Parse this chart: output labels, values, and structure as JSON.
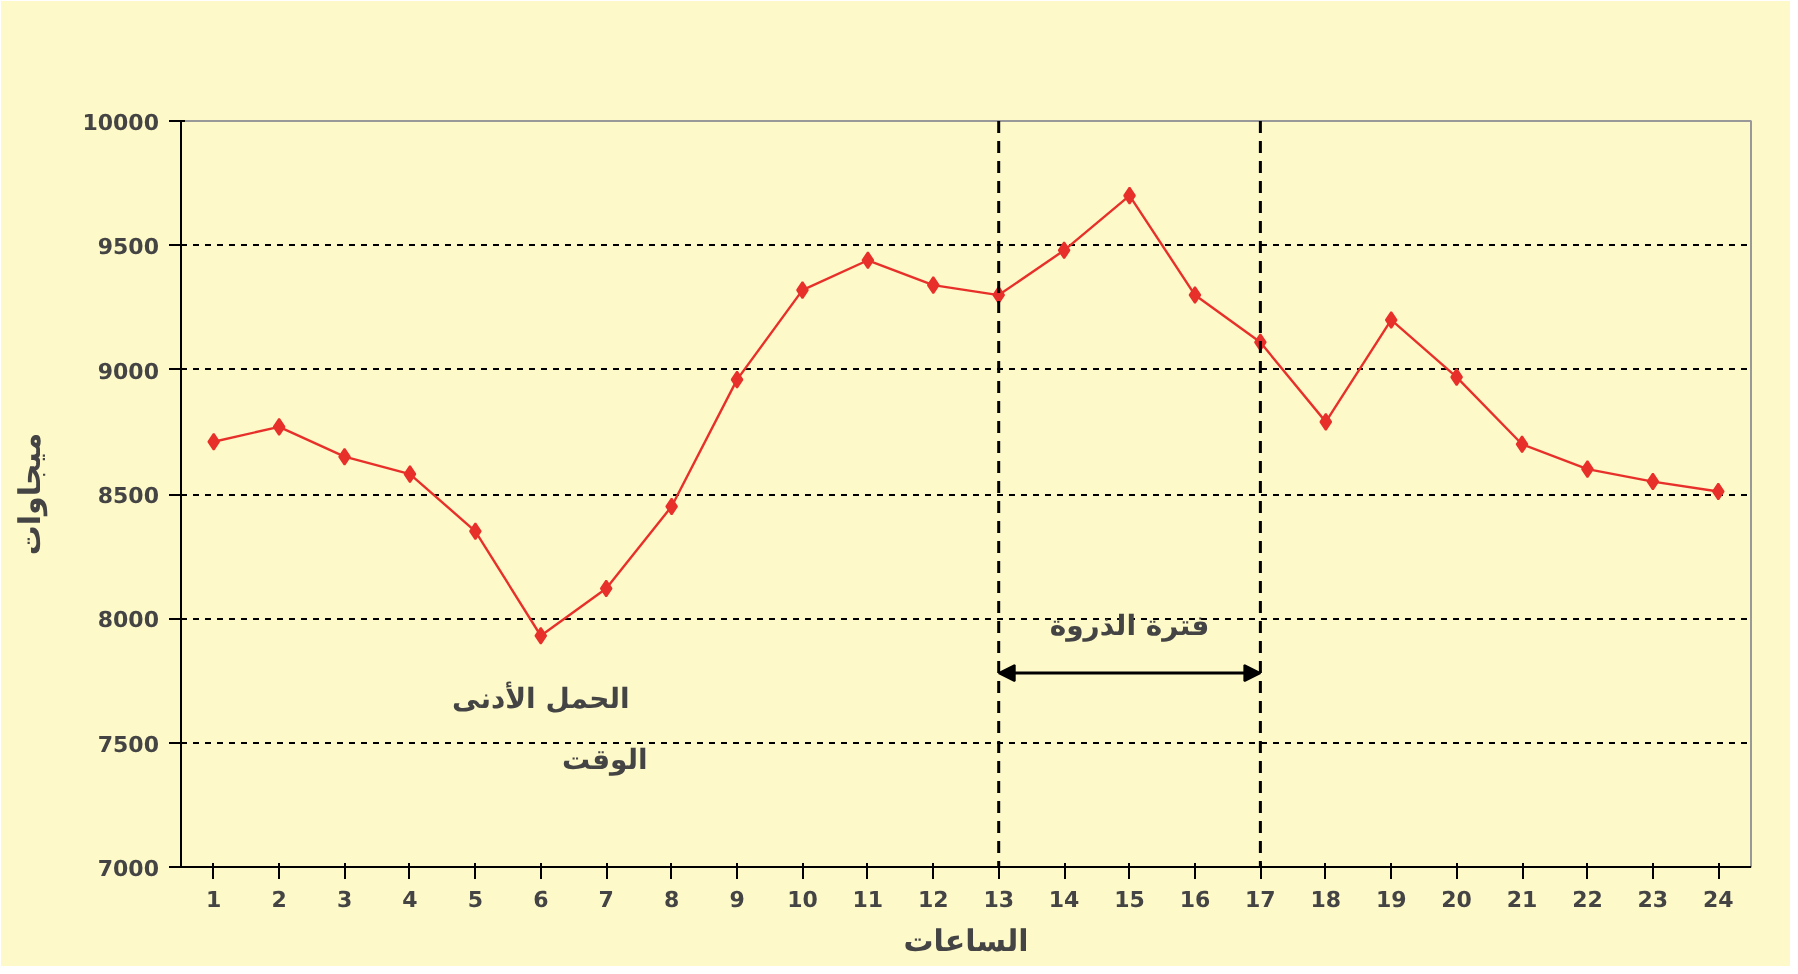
{
  "chart_data": {
    "type": "line",
    "xlabel": "الساعات",
    "ylabel": "ميجاوات",
    "x": [
      1,
      2,
      3,
      4,
      5,
      6,
      7,
      8,
      9,
      10,
      11,
      12,
      13,
      14,
      15,
      16,
      17,
      18,
      19,
      20,
      21,
      22,
      23,
      24
    ],
    "series": [
      {
        "color": "#e8302a",
        "values": [
          8710,
          8770,
          8650,
          8580,
          8350,
          7930,
          8120,
          8450,
          8960,
          9320,
          9440,
          9340,
          9300,
          9480,
          9700,
          9300,
          9110,
          8790,
          9200,
          8970,
          8700,
          8600,
          8550,
          8510
        ]
      }
    ],
    "xlim": [
      0.5,
      24.5
    ],
    "xticks": [
      1,
      2,
      3,
      4,
      5,
      6,
      7,
      8,
      9,
      10,
      11,
      12,
      13,
      14,
      15,
      16,
      17,
      18,
      19,
      20,
      21,
      22,
      23,
      24
    ],
    "ylim": [
      7000,
      10000
    ],
    "yticks": [
      7000,
      7500,
      8000,
      8500,
      9000,
      9500,
      10000
    ],
    "grid": "y",
    "marker": "diamond",
    "line_style": "solid",
    "ref_lines": [
      {
        "axis": "x",
        "value": 13,
        "label": null,
        "line_style": "dashed"
      },
      {
        "axis": "x",
        "value": 17,
        "label": null,
        "line_style": "dashed"
      }
    ],
    "annotations": [
      {
        "text": "الحمل الأدنى",
        "x": 6,
        "y": 7930
      },
      "الوقت",
      "فترة الذروة"
    ]
  }
}
